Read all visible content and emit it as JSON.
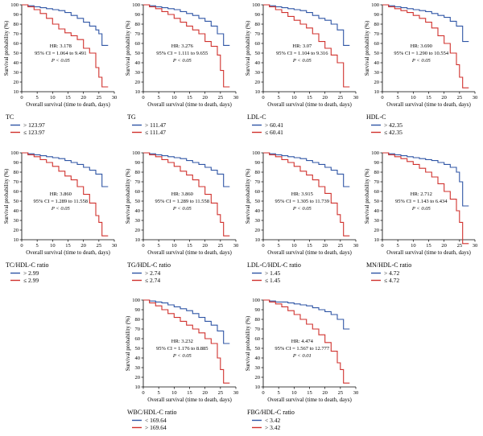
{
  "chart_data": [
    {
      "type": "line",
      "panel_title": "TC",
      "xlabel": "Overall survival (time to death, days)",
      "ylabel": "Survival probability (%)",
      "xlim": [
        0,
        30
      ],
      "ylim": [
        10,
        100
      ],
      "xticks": [
        0,
        5,
        10,
        15,
        20,
        25,
        30
      ],
      "yticks": [
        10,
        20,
        30,
        40,
        50,
        60,
        70,
        80,
        90,
        100
      ],
      "annotation": [
        "HR: 3.178",
        "95% CI = 1.064 to 9.491",
        "P < 0.05"
      ],
      "series": [
        {
          "name": "> 123.97",
          "color": "#2f55a5",
          "x": [
            0,
            2,
            4,
            6,
            8,
            10,
            12,
            14,
            16,
            18,
            20,
            22,
            24,
            25,
            26,
            28
          ],
          "y": [
            100,
            99,
            98,
            97,
            96,
            95,
            94,
            92,
            89,
            86,
            82,
            78,
            74,
            70,
            58,
            58
          ]
        },
        {
          "name": "≤ 123.97",
          "color": "#d0312d",
          "x": [
            0,
            2,
            4,
            6,
            8,
            10,
            12,
            14,
            16,
            18,
            20,
            22,
            24,
            25,
            26,
            28
          ],
          "y": [
            100,
            98,
            95,
            91,
            86,
            80,
            75,
            71,
            68,
            64,
            55,
            50,
            35,
            25,
            15,
            15
          ]
        }
      ]
    },
    {
      "type": "line",
      "panel_title": "TG",
      "xlabel": "Overall survival (time to death, days)",
      "ylabel": "Survival probability (%)",
      "xlim": [
        0,
        30
      ],
      "ylim": [
        10,
        100
      ],
      "xticks": [
        0,
        5,
        10,
        15,
        20,
        25,
        30
      ],
      "yticks": [
        10,
        20,
        30,
        40,
        50,
        60,
        70,
        80,
        90,
        100
      ],
      "annotation": [
        "HR: 3.276",
        "95% CI = 1.111 to 9.655",
        "P < 0.05"
      ],
      "series": [
        {
          "name": "> 111.47",
          "color": "#2f55a5",
          "x": [
            0,
            2,
            4,
            6,
            8,
            10,
            12,
            14,
            16,
            18,
            20,
            22,
            24,
            26,
            28
          ],
          "y": [
            100,
            99,
            98,
            97,
            96,
            95,
            93,
            91,
            89,
            86,
            83,
            78,
            70,
            58,
            58
          ]
        },
        {
          "name": "≤ 111.47",
          "color": "#d0312d",
          "x": [
            0,
            2,
            4,
            6,
            8,
            10,
            12,
            14,
            16,
            18,
            20,
            22,
            24,
            25,
            26,
            28
          ],
          "y": [
            100,
            98,
            96,
            93,
            90,
            86,
            82,
            78,
            74,
            70,
            62,
            57,
            48,
            32,
            15,
            15
          ]
        }
      ]
    },
    {
      "type": "line",
      "panel_title": "LDL-C",
      "xlabel": "Overall survival (time to death, days)",
      "ylabel": "Survival probability (%)",
      "xlim": [
        0,
        30
      ],
      "ylim": [
        10,
        100
      ],
      "xticks": [
        0,
        5,
        10,
        15,
        20,
        25,
        30
      ],
      "yticks": [
        10,
        20,
        30,
        40,
        50,
        60,
        70,
        80,
        90,
        100
      ],
      "annotation": [
        "HR: 3.07",
        "95% CI = 1.104 to 9.316",
        "P < 0.05"
      ],
      "series": [
        {
          "name": "> 60.41",
          "color": "#2f55a5",
          "x": [
            0,
            2,
            4,
            6,
            8,
            10,
            12,
            14,
            16,
            18,
            20,
            22,
            24,
            26,
            28
          ],
          "y": [
            100,
            99,
            98,
            97,
            96,
            95,
            94,
            92,
            89,
            86,
            84,
            80,
            74,
            58,
            58
          ]
        },
        {
          "name": "≤ 60.41",
          "color": "#d0312d",
          "x": [
            0,
            2,
            4,
            6,
            8,
            10,
            12,
            14,
            16,
            18,
            20,
            22,
            24,
            26,
            28
          ],
          "y": [
            100,
            98,
            95,
            92,
            88,
            84,
            80,
            76,
            70,
            62,
            55,
            48,
            40,
            15,
            15
          ]
        }
      ]
    },
    {
      "type": "line",
      "panel_title": "HDL-C",
      "xlabel": "Overall survival (time to death, days)",
      "ylabel": "Survival probability (%)",
      "xlim": [
        0,
        30
      ],
      "ylim": [
        10,
        100
      ],
      "xticks": [
        0,
        5,
        10,
        15,
        20,
        25,
        30
      ],
      "yticks": [
        10,
        20,
        30,
        40,
        50,
        60,
        70,
        80,
        90,
        100
      ],
      "annotation": [
        "HR: 3.690",
        "95% CI = 1.290 to 10.554",
        "P < 0.05"
      ],
      "series": [
        {
          "name": "> 42.35",
          "color": "#2f55a5",
          "x": [
            0,
            2,
            4,
            6,
            8,
            10,
            12,
            14,
            16,
            18,
            20,
            22,
            24,
            26,
            28
          ],
          "y": [
            100,
            99,
            98,
            97,
            96,
            95,
            94,
            93,
            91,
            89,
            87,
            83,
            78,
            62,
            62
          ]
        },
        {
          "name": "≤ 42.35",
          "color": "#d0312d",
          "x": [
            0,
            2,
            4,
            6,
            8,
            10,
            12,
            14,
            16,
            18,
            20,
            22,
            24,
            25,
            26,
            28
          ],
          "y": [
            100,
            98,
            96,
            94,
            92,
            89,
            86,
            82,
            76,
            68,
            60,
            50,
            38,
            25,
            14,
            14
          ]
        }
      ]
    },
    {
      "type": "line",
      "panel_title": "TC/HDL-C ratio",
      "xlabel": "Overall survival (time to death, days)",
      "ylabel": "Survival probability (%)",
      "xlim": [
        0,
        30
      ],
      "ylim": [
        10,
        100
      ],
      "xticks": [
        0,
        5,
        10,
        15,
        20,
        25,
        30
      ],
      "yticks": [
        10,
        20,
        30,
        40,
        50,
        60,
        70,
        80,
        90,
        100
      ],
      "annotation": [
        "HR: 3.860",
        "95% CI = 1.289 to 11.558",
        "P < 0.05"
      ],
      "series": [
        {
          "name": "> 2.99",
          "color": "#2f55a5",
          "x": [
            0,
            2,
            4,
            6,
            8,
            10,
            12,
            14,
            16,
            18,
            20,
            22,
            24,
            26,
            28
          ],
          "y": [
            100,
            99,
            98,
            97,
            96,
            95,
            94,
            92,
            90,
            88,
            85,
            82,
            78,
            65,
            65
          ]
        },
        {
          "name": "≤ 2.99",
          "color": "#d0312d",
          "x": [
            0,
            2,
            4,
            6,
            8,
            10,
            12,
            14,
            16,
            18,
            20,
            22,
            24,
            25,
            26,
            28
          ],
          "y": [
            100,
            98,
            96,
            93,
            90,
            86,
            81,
            76,
            72,
            65,
            57,
            48,
            35,
            28,
            14,
            14
          ]
        }
      ]
    },
    {
      "type": "line",
      "panel_title": "TG/HDL-C ratio",
      "xlabel": "Overall survival (time to death, days)",
      "ylabel": "Survival probability (%)",
      "xlim": [
        0,
        30
      ],
      "ylim": [
        10,
        100
      ],
      "xticks": [
        0,
        5,
        10,
        15,
        20,
        25,
        30
      ],
      "yticks": [
        10,
        20,
        30,
        40,
        50,
        60,
        70,
        80,
        90,
        100
      ],
      "annotation": [
        "HR: 3.860",
        "95% CI = 1.289 to 11.558",
        "P < 0.05"
      ],
      "series": [
        {
          "name": "> 2.74",
          "color": "#2f55a5",
          "x": [
            0,
            2,
            4,
            6,
            8,
            10,
            12,
            14,
            16,
            18,
            20,
            22,
            24,
            26,
            28
          ],
          "y": [
            100,
            99,
            98,
            97,
            96,
            95,
            94,
            92,
            90,
            88,
            85,
            82,
            78,
            65,
            65
          ]
        },
        {
          "name": "≤ 2.74",
          "color": "#d0312d",
          "x": [
            0,
            2,
            4,
            6,
            8,
            10,
            12,
            14,
            16,
            18,
            20,
            22,
            24,
            25,
            26,
            28
          ],
          "y": [
            100,
            98,
            96,
            93,
            90,
            86,
            81,
            77,
            72,
            65,
            57,
            48,
            36,
            28,
            14,
            14
          ]
        }
      ]
    },
    {
      "type": "line",
      "panel_title": "LDL-C/HDL-C ratio",
      "xlabel": "Overall survival (time to death, days)",
      "ylabel": "Survival probability (%)",
      "xlim": [
        0,
        30
      ],
      "ylim": [
        10,
        100
      ],
      "xticks": [
        0,
        5,
        10,
        15,
        20,
        25,
        30
      ],
      "yticks": [
        10,
        20,
        30,
        40,
        50,
        60,
        70,
        80,
        90,
        100
      ],
      "annotation": [
        "HR: 3.915",
        "95% CI = 1.305 to 11.739",
        "P < 0.05"
      ],
      "series": [
        {
          "name": "> 1.45",
          "color": "#2f55a5",
          "x": [
            0,
            2,
            4,
            6,
            8,
            10,
            12,
            14,
            16,
            18,
            20,
            22,
            24,
            26,
            28
          ],
          "y": [
            100,
            99,
            98,
            97,
            96,
            95,
            94,
            92,
            90,
            88,
            85,
            82,
            78,
            65,
            65
          ]
        },
        {
          "name": "≤ 1.45",
          "color": "#d0312d",
          "x": [
            0,
            2,
            4,
            6,
            8,
            10,
            12,
            14,
            16,
            18,
            20,
            22,
            24,
            25,
            26,
            28
          ],
          "y": [
            100,
            98,
            96,
            93,
            90,
            86,
            81,
            77,
            72,
            65,
            58,
            48,
            36,
            28,
            14,
            14
          ]
        }
      ]
    },
    {
      "type": "line",
      "panel_title": "MN/HDL-C ratio",
      "xlabel": "Overall survival (time to death, days)",
      "ylabel": "Survival probability (%)",
      "xlim": [
        0,
        30
      ],
      "ylim": [
        10,
        100
      ],
      "xticks": [
        0,
        5,
        10,
        15,
        20,
        25,
        30
      ],
      "yticks": [
        10,
        20,
        30,
        40,
        50,
        60,
        70,
        80,
        90,
        100
      ],
      "annotation": [
        "HR: 2.712",
        "95% CI = 1.143 to 6.434",
        "P < 0.05"
      ],
      "series": [
        {
          "name": "> 4.72",
          "color": "#2f55a5",
          "x": [
            0,
            2,
            4,
            6,
            8,
            10,
            12,
            14,
            16,
            18,
            20,
            22,
            24,
            25,
            26,
            28
          ],
          "y": [
            100,
            99,
            98,
            97,
            96,
            95,
            94,
            93,
            92,
            90,
            88,
            85,
            80,
            70,
            45,
            45
          ]
        },
        {
          "name": "≤ 4.72",
          "color": "#d0312d",
          "x": [
            0,
            2,
            4,
            6,
            8,
            10,
            12,
            14,
            16,
            18,
            20,
            22,
            24,
            25,
            26,
            28
          ],
          "y": [
            100,
            98,
            96,
            94,
            91,
            88,
            84,
            80,
            75,
            68,
            60,
            52,
            40,
            28,
            6,
            6
          ]
        }
      ]
    },
    {
      "type": "line",
      "panel_title": "WBC/HDL-C ratio",
      "xlabel": "Overall survival (time to death, days)",
      "ylabel": "Survival probability (%)",
      "xlim": [
        0,
        30
      ],
      "ylim": [
        10,
        100
      ],
      "xticks": [
        0,
        5,
        10,
        15,
        20,
        25,
        30
      ],
      "yticks": [
        10,
        20,
        30,
        40,
        50,
        60,
        70,
        80,
        90,
        100
      ],
      "annotation": [
        "HR: 3.232",
        "95% CI = 1.176 to 8.885",
        "P < 0.05"
      ],
      "series": [
        {
          "name": "< 169.64",
          "color": "#2f55a5",
          "x": [
            0,
            2,
            4,
            6,
            8,
            10,
            12,
            14,
            16,
            18,
            20,
            22,
            24,
            26,
            28
          ],
          "y": [
            100,
            99,
            98,
            97,
            95,
            93,
            91,
            89,
            86,
            82,
            78,
            74,
            68,
            55,
            55
          ]
        },
        {
          "name": "> 169.64",
          "color": "#d0312d",
          "x": [
            0,
            2,
            4,
            6,
            8,
            10,
            12,
            14,
            16,
            18,
            20,
            22,
            24,
            25,
            26,
            28
          ],
          "y": [
            100,
            97,
            94,
            90,
            86,
            82,
            78,
            74,
            70,
            66,
            60,
            55,
            40,
            28,
            14,
            14
          ]
        }
      ]
    },
    {
      "type": "line",
      "panel_title": "FBG/HDL-C ratio",
      "xlabel": "Overall survival (time to death, days)",
      "ylabel": "Survival probability (%)",
      "xlim": [
        0,
        30
      ],
      "ylim": [
        10,
        100
      ],
      "xticks": [
        0,
        5,
        10,
        15,
        20,
        25,
        30
      ],
      "yticks": [
        10,
        20,
        30,
        40,
        50,
        60,
        70,
        80,
        90,
        100
      ],
      "annotation": [
        "HR: 4.474",
        "95% CI = 1.567 to 12.777",
        "P < 0.01"
      ],
      "series": [
        {
          "name": "< 3.42",
          "color": "#2f55a5",
          "x": [
            0,
            2,
            4,
            6,
            8,
            10,
            12,
            14,
            16,
            18,
            20,
            22,
            24,
            26,
            28
          ],
          "y": [
            100,
            99,
            98,
            98,
            97,
            96,
            95,
            94,
            92,
            90,
            88,
            85,
            80,
            70,
            70
          ]
        },
        {
          "name": "> 3.42",
          "color": "#d0312d",
          "x": [
            0,
            2,
            4,
            6,
            8,
            10,
            12,
            14,
            16,
            18,
            20,
            22,
            24,
            25,
            26,
            28
          ],
          "y": [
            100,
            98,
            96,
            93,
            89,
            85,
            80,
            75,
            70,
            64,
            56,
            47,
            35,
            28,
            14,
            14
          ]
        }
      ]
    }
  ]
}
